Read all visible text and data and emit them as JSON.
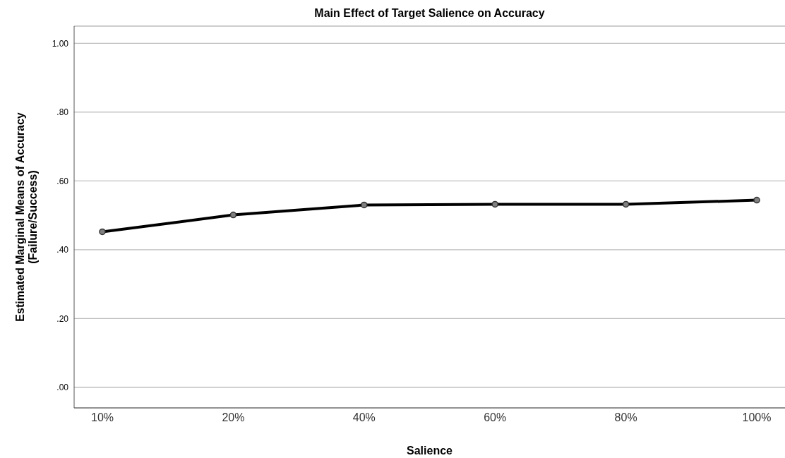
{
  "chart_data": {
    "type": "line",
    "title": "Main Effect of Target Salience on Accuracy",
    "xlabel": "Salience",
    "ylabel": "Estimated Marginal Means of Accuracy\n(Failure/Success)",
    "categories": [
      "10%",
      "20%",
      "40%",
      "60%",
      "80%",
      "100%"
    ],
    "series": [
      {
        "color": "#000000",
        "values": [
          0.452,
          0.501,
          0.53,
          0.532,
          0.532,
          0.544
        ]
      }
    ],
    "ylim": [
      -0.06,
      1.05
    ],
    "yticks": [
      {
        "value": 0,
        "label": ".00"
      },
      {
        "value": 0.2,
        "label": ".20"
      },
      {
        "value": 0.4,
        "label": ".40"
      },
      {
        "value": 0.6,
        "label": ".60"
      },
      {
        "value": 0.8,
        "label": ".80"
      },
      {
        "value": 1,
        "label": "1.00"
      }
    ],
    "grid": "y",
    "marker": "circle",
    "line_style": "solid"
  }
}
